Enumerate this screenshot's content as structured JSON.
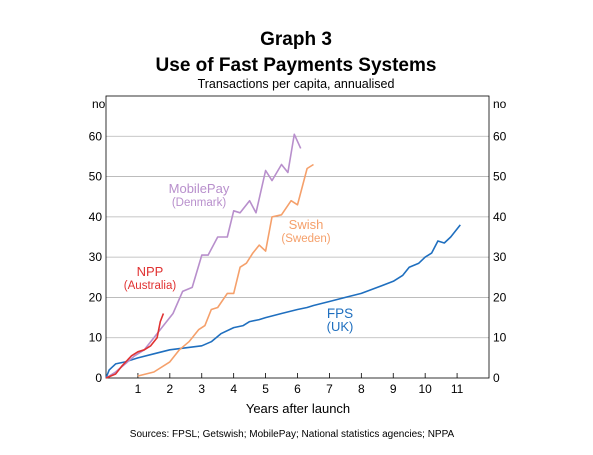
{
  "chart_data": {
    "type": "line",
    "title_line1": "Graph 3",
    "title_line2": "Use of Fast Payments Systems",
    "subtitle": "Transactions per capita, annualised",
    "left_unit": "no",
    "right_unit": "no",
    "xlabel": "Years after launch",
    "source": "Sources: FPSL; Getswish; MobilePay; National statistics agencies; NPPA",
    "xlim": [
      0,
      12
    ],
    "ylim": [
      0,
      70
    ],
    "x_ticks": [
      1,
      2,
      3,
      4,
      5,
      6,
      7,
      8,
      9,
      10,
      11
    ],
    "y_ticks": [
      0,
      10,
      20,
      30,
      40,
      50,
      60
    ],
    "series": [
      {
        "name": "FPS",
        "sublabel": "(UK)",
        "color": "#1f6fbf",
        "points": [
          [
            0,
            0
          ],
          [
            0.1,
            2
          ],
          [
            0.3,
            3.5
          ],
          [
            0.6,
            4
          ],
          [
            1.0,
            5
          ],
          [
            1.5,
            6
          ],
          [
            2.0,
            7
          ],
          [
            2.5,
            7.5
          ],
          [
            3.0,
            8
          ],
          [
            3.3,
            9
          ],
          [
            3.6,
            11
          ],
          [
            4.0,
            12.5
          ],
          [
            4.3,
            13
          ],
          [
            4.5,
            14
          ],
          [
            4.8,
            14.5
          ],
          [
            5.0,
            15
          ],
          [
            5.5,
            16
          ],
          [
            6.0,
            17
          ],
          [
            6.3,
            17.5
          ],
          [
            6.5,
            18
          ],
          [
            7.0,
            19
          ],
          [
            7.5,
            20
          ],
          [
            8.0,
            21
          ],
          [
            8.5,
            22.5
          ],
          [
            9.0,
            24
          ],
          [
            9.3,
            25.5
          ],
          [
            9.5,
            27.5
          ],
          [
            9.8,
            28.5
          ],
          [
            10.0,
            30
          ],
          [
            10.2,
            31
          ],
          [
            10.4,
            34
          ],
          [
            10.6,
            33.5
          ],
          [
            10.8,
            35
          ],
          [
            11.1,
            38
          ]
        ]
      },
      {
        "name": "Swish",
        "sublabel": "(Sweden)",
        "color": "#f5a06b",
        "points": [
          [
            1.0,
            0.5
          ],
          [
            1.5,
            1.5
          ],
          [
            2.0,
            4
          ],
          [
            2.3,
            7
          ],
          [
            2.6,
            9
          ],
          [
            2.9,
            12
          ],
          [
            3.1,
            13
          ],
          [
            3.3,
            17
          ],
          [
            3.5,
            17.5
          ],
          [
            3.8,
            21
          ],
          [
            4.0,
            21
          ],
          [
            4.2,
            27.5
          ],
          [
            4.4,
            28.5
          ],
          [
            4.6,
            31
          ],
          [
            4.8,
            33
          ],
          [
            5.0,
            31.5
          ],
          [
            5.2,
            40
          ],
          [
            5.5,
            40.5
          ],
          [
            5.8,
            44
          ],
          [
            6.0,
            43
          ],
          [
            6.3,
            52
          ],
          [
            6.5,
            53
          ]
        ]
      },
      {
        "name": "MobilePay",
        "sublabel": "(Denmark)",
        "color": "#b88fcc",
        "points": [
          [
            0,
            0
          ],
          [
            0.3,
            1.5
          ],
          [
            0.6,
            3.5
          ],
          [
            0.9,
            5.5
          ],
          [
            1.2,
            7
          ],
          [
            1.5,
            10
          ],
          [
            1.8,
            13
          ],
          [
            2.1,
            16
          ],
          [
            2.4,
            21.5
          ],
          [
            2.7,
            22.5
          ],
          [
            3.0,
            30.5
          ],
          [
            3.2,
            30.5
          ],
          [
            3.5,
            35
          ],
          [
            3.8,
            35
          ],
          [
            4.0,
            41.5
          ],
          [
            4.2,
            41
          ],
          [
            4.5,
            44
          ],
          [
            4.7,
            41
          ],
          [
            5.0,
            51.5
          ],
          [
            5.2,
            49
          ],
          [
            5.5,
            53
          ],
          [
            5.7,
            51
          ],
          [
            5.9,
            60.5
          ],
          [
            6.1,
            57
          ]
        ]
      },
      {
        "name": "NPP",
        "sublabel": "(Australia)",
        "color": "#e03232",
        "points": [
          [
            0,
            0
          ],
          [
            0.3,
            1
          ],
          [
            0.5,
            3
          ],
          [
            0.8,
            5.5
          ],
          [
            1.0,
            6.5
          ],
          [
            1.2,
            7
          ],
          [
            1.4,
            8
          ],
          [
            1.5,
            9
          ],
          [
            1.6,
            10
          ],
          [
            1.7,
            14
          ],
          [
            1.8,
            16
          ]
        ]
      }
    ]
  }
}
